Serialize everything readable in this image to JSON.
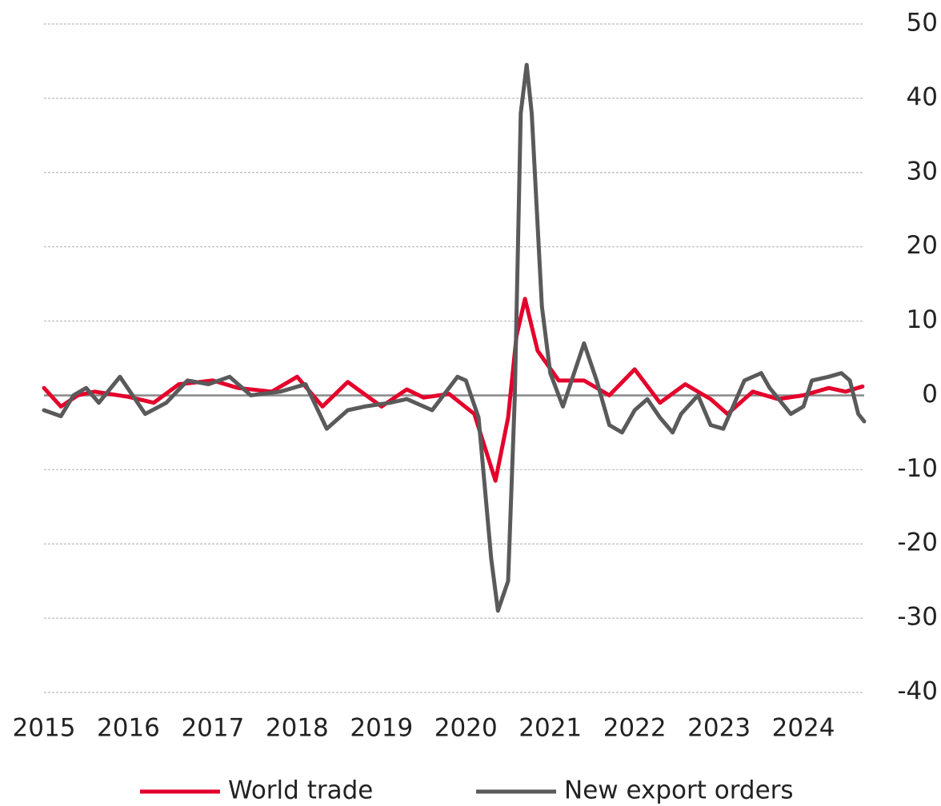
{
  "chart_data": {
    "type": "line",
    "series": [
      {
        "name": "World trade",
        "color": "#e4002b",
        "x": [
          2015.0,
          2015.2,
          2015.4,
          2015.6,
          2016.0,
          2016.3,
          2016.6,
          2017.0,
          2017.3,
          2017.7,
          2018.0,
          2018.3,
          2018.6,
          2019.0,
          2019.3,
          2019.5,
          2019.8,
          2020.1,
          2020.35,
          2020.5,
          2020.6,
          2020.7,
          2020.85,
          2021.1,
          2021.4,
          2021.7,
          2022.0,
          2022.3,
          2022.6,
          2022.9,
          2023.1,
          2023.4,
          2023.7,
          2024.0,
          2024.3,
          2024.5,
          2024.7
        ],
        "values": [
          1,
          -1.5,
          0,
          0.5,
          -0.2,
          -1,
          1.5,
          2,
          1,
          0.5,
          2.5,
          -1.5,
          1.8,
          -1.5,
          0.8,
          -0.3,
          0.2,
          -2.5,
          -11.5,
          -3,
          8,
          13,
          6,
          2,
          2,
          0,
          3.5,
          -1,
          1.5,
          -0.5,
          -2.5,
          0.5,
          -0.5,
          0,
          1,
          0.5,
          1.2
        ]
      },
      {
        "name": "New export orders",
        "color": "#5a5a5a",
        "x": [
          2015.0,
          2015.2,
          2015.35,
          2015.5,
          2015.65,
          2015.9,
          2016.2,
          2016.45,
          2016.7,
          2016.95,
          2017.2,
          2017.45,
          2017.8,
          2018.1,
          2018.35,
          2018.6,
          2018.8,
          2019.1,
          2019.3,
          2019.6,
          2019.9,
          2020.0,
          2020.15,
          2020.3,
          2020.38,
          2020.5,
          2020.58,
          2020.65,
          2020.72,
          2020.78,
          2020.9,
          2021.0,
          2021.15,
          2021.4,
          2021.55,
          2021.7,
          2021.85,
          2022.0,
          2022.15,
          2022.3,
          2022.45,
          2022.55,
          2022.75,
          2022.9,
          2023.05,
          2023.3,
          2023.5,
          2023.6,
          2023.85,
          2024.0,
          2024.1,
          2024.3,
          2024.45,
          2024.55,
          2024.65,
          2024.72
        ],
        "values": [
          -2,
          -2.8,
          0,
          1,
          -1,
          2.5,
          -2.5,
          -1,
          2,
          1.5,
          2.5,
          0,
          0.5,
          1.5,
          -4.5,
          -2,
          -1.5,
          -1,
          -0.5,
          -2,
          2.5,
          2,
          -3,
          -22,
          -29,
          -25,
          0,
          38,
          44.5,
          38,
          12,
          3,
          -1.5,
          7,
          2,
          -4,
          -5,
          -2,
          -0.5,
          -3,
          -5,
          -2.5,
          0,
          -4,
          -4.5,
          2,
          3,
          1,
          -2.5,
          -1.5,
          2,
          2.5,
          3,
          2,
          -2.5,
          -3.5
        ]
      }
    ],
    "xlim": [
      2015,
      2024.72
    ],
    "xticks": [
      2015,
      2016,
      2017,
      2018,
      2019,
      2020,
      2021,
      2022,
      2023,
      2024
    ],
    "ylim": [
      -40,
      50
    ],
    "yticks": [
      -40,
      -30,
      -20,
      -10,
      0,
      10,
      20,
      30,
      40,
      50
    ],
    "grid": true,
    "legend": "bottom"
  }
}
